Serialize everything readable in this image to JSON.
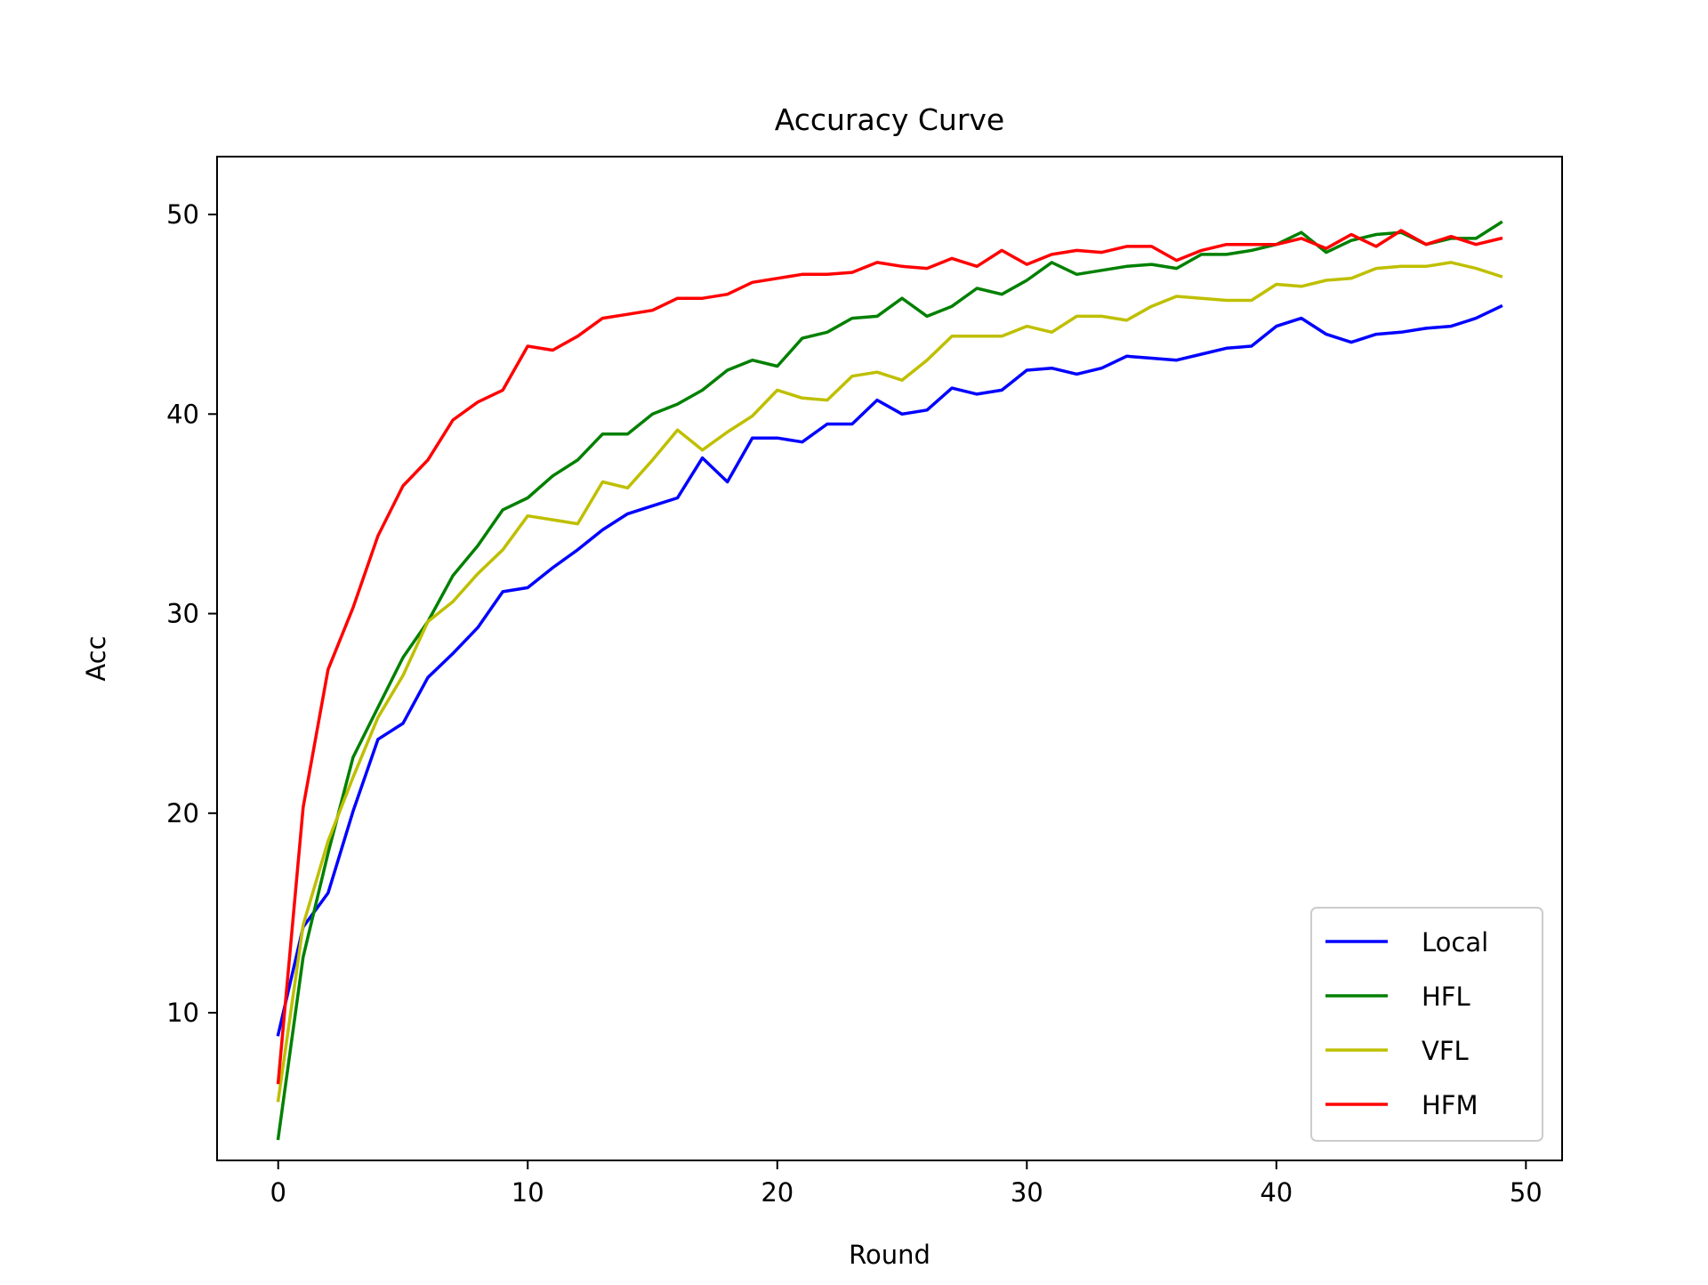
{
  "chart_data": {
    "type": "line",
    "title": "Accuracy Curve",
    "xlabel": "Round",
    "ylabel": "Acc",
    "xlim": [
      -2.45,
      51.45
    ],
    "ylim": [
      2.6,
      52.9
    ],
    "xticks": [
      0,
      10,
      20,
      30,
      40,
      50
    ],
    "yticks": [
      10,
      20,
      30,
      40,
      50
    ],
    "grid": false,
    "legend_position": "lower right",
    "x": [
      0,
      1,
      2,
      3,
      4,
      5,
      6,
      7,
      8,
      9,
      10,
      11,
      12,
      13,
      14,
      15,
      16,
      17,
      18,
      19,
      20,
      21,
      22,
      23,
      24,
      25,
      26,
      27,
      28,
      29,
      30,
      31,
      32,
      33,
      34,
      35,
      36,
      37,
      38,
      39,
      40,
      41,
      42,
      43,
      44,
      45,
      46,
      47,
      48,
      49
    ],
    "series": [
      {
        "name": "Local",
        "color": "#0000ff",
        "values": [
          8.9,
          14.3,
          16.0,
          20.1,
          23.7,
          24.5,
          26.8,
          28.0,
          29.3,
          31.1,
          31.3,
          32.3,
          33.2,
          34.2,
          35.0,
          35.4,
          35.8,
          37.8,
          36.6,
          38.8,
          38.8,
          38.6,
          39.5,
          39.5,
          40.7,
          40.0,
          40.2,
          41.3,
          41.0,
          41.2,
          42.2,
          42.3,
          42.0,
          42.3,
          42.9,
          42.8,
          42.7,
          43.0,
          43.3,
          43.4,
          44.4,
          44.8,
          44.0,
          43.6,
          44.0,
          44.1,
          44.3,
          44.4,
          44.8,
          45.4
        ]
      },
      {
        "name": "HFL",
        "color": "#008000",
        "values": [
          3.7,
          12.8,
          18.0,
          22.8,
          25.3,
          27.8,
          29.6,
          31.9,
          33.4,
          35.2,
          35.8,
          36.9,
          37.7,
          39.0,
          39.0,
          40.0,
          40.5,
          41.2,
          42.2,
          42.7,
          42.4,
          43.8,
          44.1,
          44.8,
          44.9,
          45.8,
          44.9,
          45.4,
          46.3,
          46.0,
          46.7,
          47.6,
          47.0,
          47.2,
          47.4,
          47.5,
          47.3,
          48.0,
          48.0,
          48.2,
          48.5,
          49.1,
          48.1,
          48.7,
          49.0,
          49.1,
          48.5,
          48.8,
          48.8,
          49.6
        ]
      },
      {
        "name": "VFL",
        "color": "#bfbf00",
        "values": [
          5.6,
          14.4,
          18.6,
          21.8,
          24.8,
          26.9,
          29.6,
          30.6,
          32.0,
          33.2,
          34.9,
          34.7,
          34.5,
          36.6,
          36.3,
          37.7,
          39.2,
          38.2,
          39.1,
          39.9,
          41.2,
          40.8,
          40.7,
          41.9,
          42.1,
          41.7,
          42.7,
          43.9,
          43.9,
          43.9,
          44.4,
          44.1,
          44.9,
          44.9,
          44.7,
          45.4,
          45.9,
          45.8,
          45.7,
          45.7,
          46.5,
          46.4,
          46.7,
          46.8,
          47.3,
          47.4,
          47.4,
          47.6,
          47.3,
          46.9
        ]
      },
      {
        "name": "HFM",
        "color": "#ff0000",
        "values": [
          6.5,
          20.3,
          27.2,
          30.3,
          33.9,
          36.4,
          37.7,
          39.7,
          40.6,
          41.2,
          43.4,
          43.2,
          43.9,
          44.8,
          45.0,
          45.2,
          45.8,
          45.8,
          46.0,
          46.6,
          46.8,
          47.0,
          47.0,
          47.1,
          47.6,
          47.4,
          47.3,
          47.8,
          47.4,
          48.2,
          47.5,
          48.0,
          48.2,
          48.1,
          48.4,
          48.4,
          47.7,
          48.2,
          48.5,
          48.5,
          48.5,
          48.8,
          48.3,
          49.0,
          48.4,
          49.2,
          48.5,
          48.9,
          48.5,
          48.8
        ]
      }
    ]
  }
}
